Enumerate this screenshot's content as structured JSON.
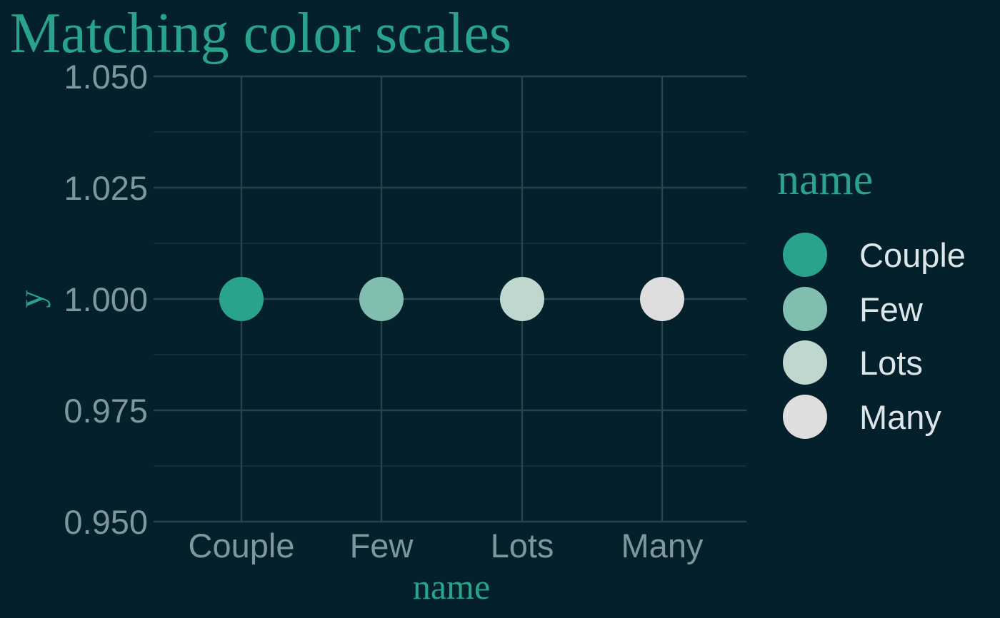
{
  "chart_data": {
    "type": "scatter",
    "title": "Matching color scales",
    "xlabel": "name",
    "ylabel": "y",
    "categories": [
      "Couple",
      "Few",
      "Lots",
      "Many"
    ],
    "points": [
      {
        "name": "Couple",
        "y": 1.0,
        "color": "#2aa38c"
      },
      {
        "name": "Few",
        "y": 1.0,
        "color": "#82beaf"
      },
      {
        "name": "Lots",
        "y": 1.0,
        "color": "#bfd7ce"
      },
      {
        "name": "Many",
        "y": 1.0,
        "color": "#dedede"
      }
    ],
    "yticks": [
      "0.950",
      "0.975",
      "1.000",
      "1.025",
      "1.050"
    ],
    "ylim": [
      0.95,
      1.05
    ],
    "grid": true,
    "legend": {
      "title": "name",
      "position": "right",
      "items": [
        {
          "label": "Couple",
          "color": "#2aa38c"
        },
        {
          "label": "Few",
          "color": "#82beaf"
        },
        {
          "label": "Lots",
          "color": "#bfd7ce"
        },
        {
          "label": "Many",
          "color": "#dedede"
        }
      ]
    }
  },
  "colors": {
    "background": "#03202b",
    "accent": "#2aa38c",
    "tick_text": "#7f979c",
    "legend_text": "#dce6e8",
    "grid_major": "#2a434b",
    "grid_minor": "#193640"
  }
}
